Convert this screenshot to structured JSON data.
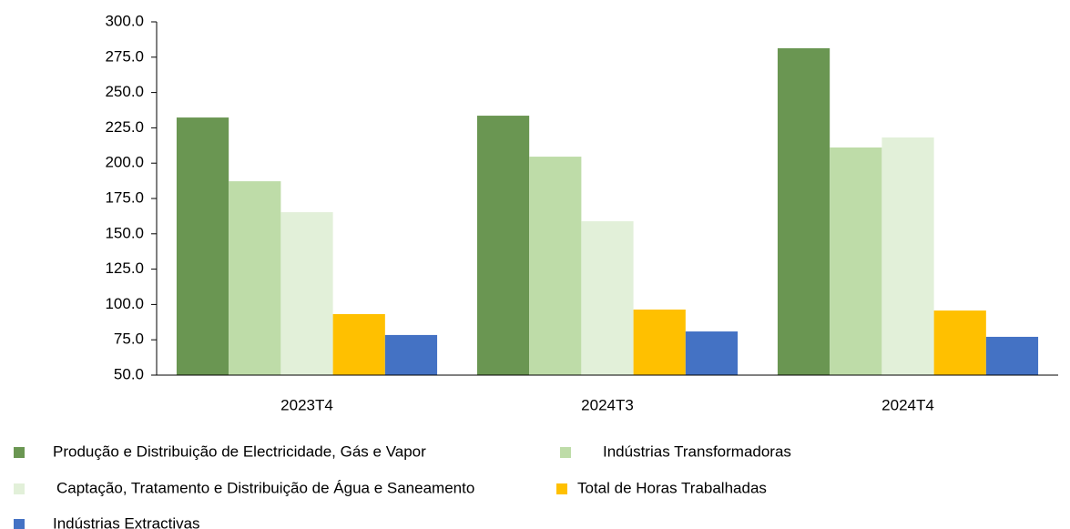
{
  "chart_data": {
    "type": "bar",
    "categories": [
      "2023T4",
      "2024T3",
      "2024T4"
    ],
    "series": [
      {
        "name": "Produção e Distribuição de Electricidade, Gás e Vapor",
        "color": "#6a9652",
        "values": [
          232.3,
          233.6,
          281.3
        ]
      },
      {
        "name": "Indústrias Transformadoras",
        "color": "#bedca8",
        "values": [
          187.2,
          204.6,
          211.1
        ]
      },
      {
        "name": "Captação, Tratamento e Distribuição de Água e Saneamento",
        "color": "#e2f0d9",
        "values": [
          165.3,
          158.9,
          218.2
        ]
      },
      {
        "name": "Total de Horas Trabalhadas",
        "color": "#ffc000",
        "values": [
          93.2,
          96.4,
          95.7
        ]
      },
      {
        "name": "Indústrias Extractivas",
        "color": "#4472c4",
        "values": [
          78.4,
          80.9,
          77.1
        ]
      }
    ],
    "ylim": [
      50,
      300
    ],
    "yticks": [
      {
        "value": 50,
        "label": "50.0"
      },
      {
        "value": 75,
        "label": "75.0"
      },
      {
        "value": 100,
        "label": "100.0"
      },
      {
        "value": 125,
        "label": "125.0"
      },
      {
        "value": 150,
        "label": "150.0"
      },
      {
        "value": 175,
        "label": "175.0"
      },
      {
        "value": 200,
        "label": "200.0"
      },
      {
        "value": 225,
        "label": "225.0"
      },
      {
        "value": 250,
        "label": "250.0"
      },
      {
        "value": 275,
        "label": "275.0"
      },
      {
        "value": 300,
        "label": "300.0"
      }
    ],
    "grid": false,
    "legend": "bottom"
  }
}
